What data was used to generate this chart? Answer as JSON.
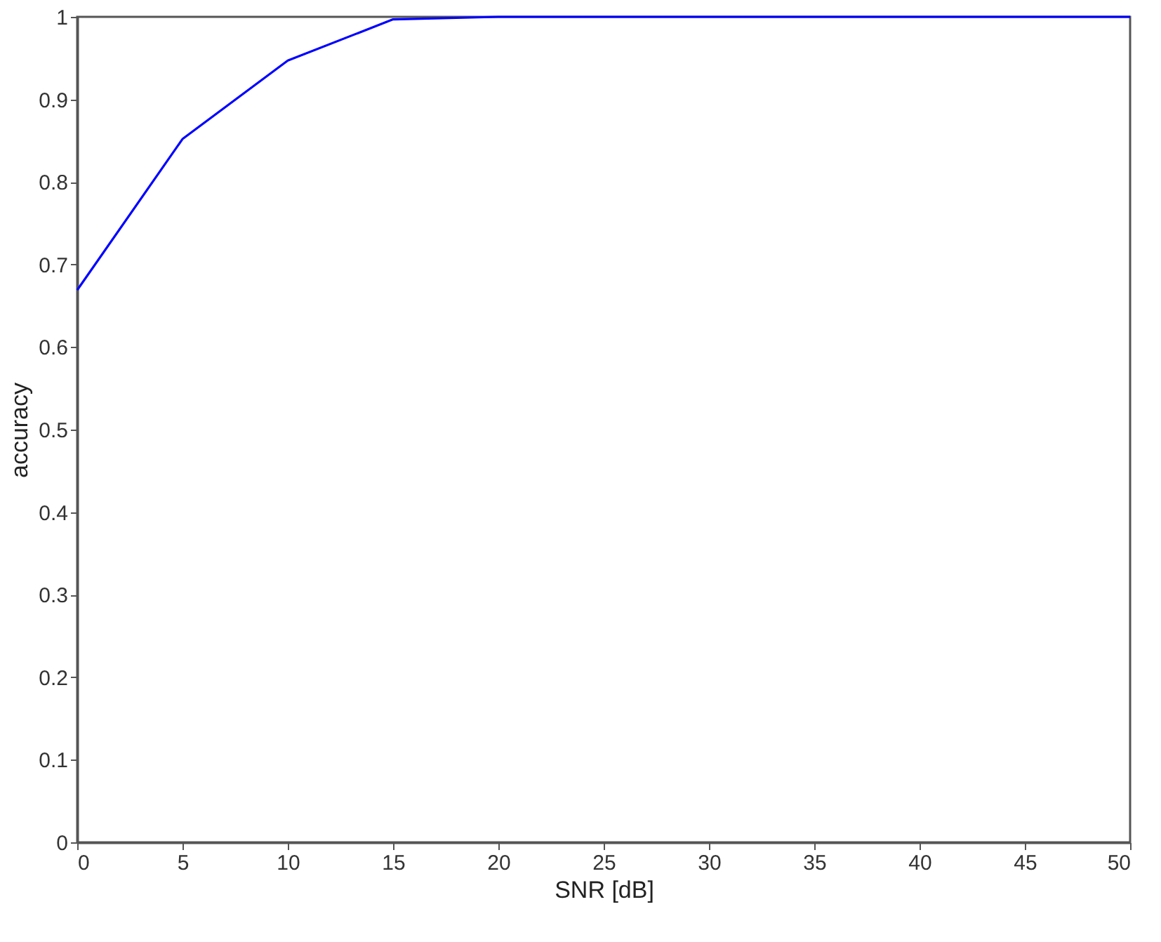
{
  "chart_data": {
    "type": "line",
    "xlabel": "SNR [dB]",
    "ylabel": "accuracy",
    "x": [
      0,
      5,
      10,
      15,
      20,
      25,
      30,
      35,
      40,
      45,
      50
    ],
    "series": [
      {
        "color": "#0000ff",
        "values": [
          0.669,
          0.852,
          0.947,
          0.997,
          1,
          1,
          1,
          1,
          1,
          1,
          1
        ]
      }
    ],
    "xlim": [
      0,
      50
    ],
    "xticks": [
      0,
      5,
      10,
      15,
      20,
      25,
      30,
      35,
      40,
      45,
      50
    ],
    "ylim": [
      0,
      1
    ],
    "yticks": [
      0,
      0.1,
      0.2,
      0.3,
      0.4,
      0.5,
      0.6,
      0.7,
      0.8,
      0.9,
      1
    ],
    "grid": false,
    "marker": "none",
    "line_style": "solid"
  }
}
